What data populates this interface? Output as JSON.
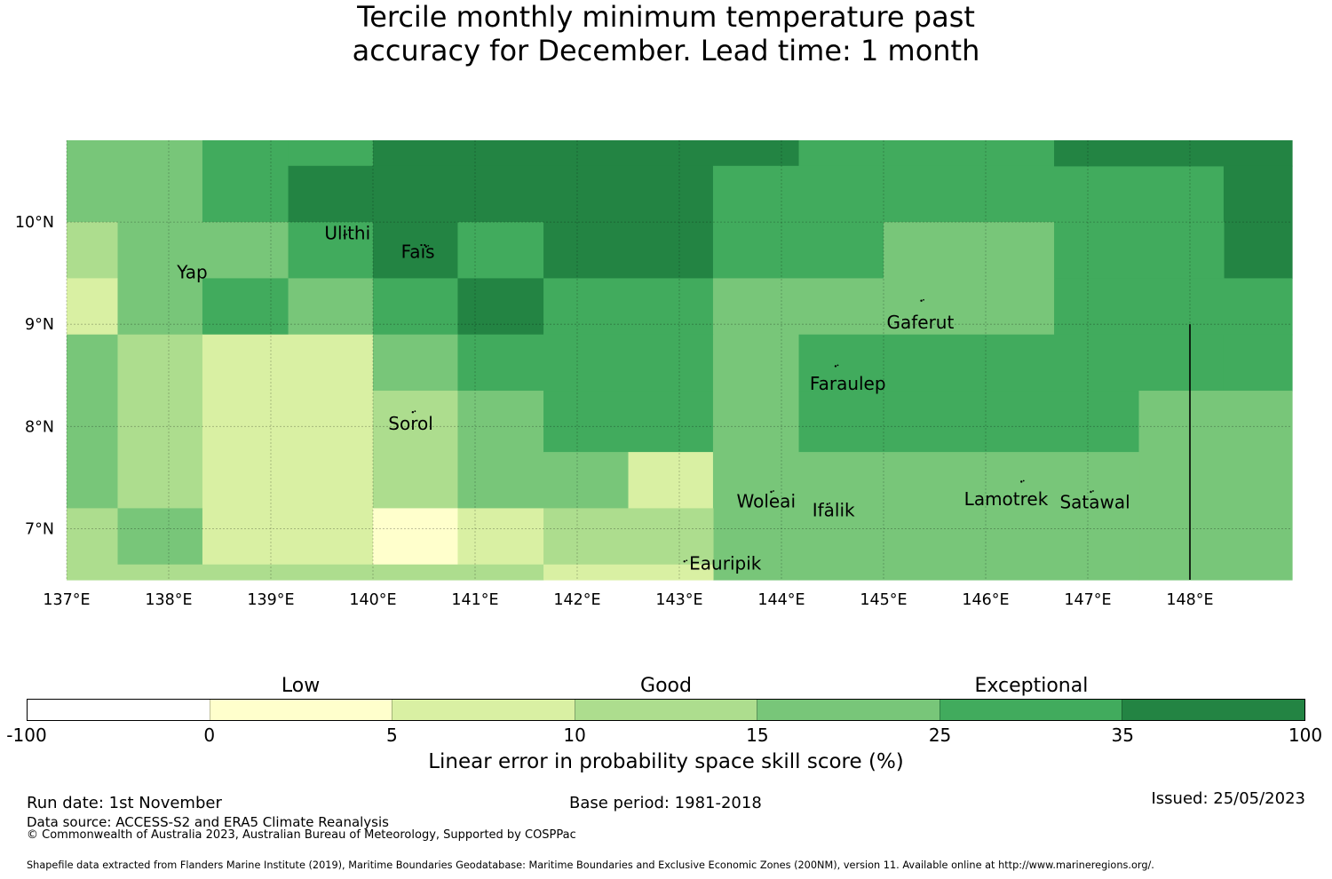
{
  "title": {
    "line1": "Tercile monthly minimum temperature past",
    "line2": "accuracy for December. Lead time: 1 month"
  },
  "colors": {
    "c0": "#ffffcc",
    "c1": "#d9f0a3",
    "c2": "#addd8e",
    "c3": "#78c679",
    "c4": "#41ab5d",
    "c5": "#238443"
  },
  "chart_data": {
    "type": "heatmap",
    "map": {
      "lon_range": [
        137.0,
        149.0
      ],
      "lat_range": [
        6.5,
        10.8
      ],
      "lon_ticks": [
        {
          "value": 137,
          "label": "137°E"
        },
        {
          "value": 138,
          "label": "138°E"
        },
        {
          "value": 139,
          "label": "139°E"
        },
        {
          "value": 140,
          "label": "140°E"
        },
        {
          "value": 141,
          "label": "141°E"
        },
        {
          "value": 142,
          "label": "142°E"
        },
        {
          "value": 143,
          "label": "143°E"
        },
        {
          "value": 144,
          "label": "144°E"
        },
        {
          "value": 145,
          "label": "145°E"
        },
        {
          "value": 146,
          "label": "146°E"
        },
        {
          "value": 147,
          "label": "147°E"
        },
        {
          "value": 148,
          "label": "148°E"
        }
      ],
      "lat_ticks": [
        {
          "value": 10,
          "label": "10°N"
        },
        {
          "value": 9,
          "label": "9°N"
        },
        {
          "value": 8,
          "label": "8°N"
        },
        {
          "value": 7,
          "label": "7°N"
        }
      ],
      "cells": [
        {
          "lon": [
            137.0,
            138.33
          ],
          "lat": [
            10.0,
            10.8
          ],
          "cls": 3
        },
        {
          "lon": [
            138.33,
            139.17
          ],
          "lat": [
            10.0,
            10.8
          ],
          "cls": 4
        },
        {
          "lon": [
            139.17,
            140.0
          ],
          "lat": [
            10.55,
            10.8
          ],
          "cls": 4
        },
        {
          "lon": [
            139.17,
            140.0
          ],
          "lat": [
            10.0,
            10.55
          ],
          "cls": 5
        },
        {
          "lon": [
            140.0,
            144.17
          ],
          "lat": [
            10.55,
            10.8
          ],
          "cls": 5
        },
        {
          "lon": [
            140.0,
            143.33
          ],
          "lat": [
            10.0,
            10.55
          ],
          "cls": 5
        },
        {
          "lon": [
            144.17,
            146.67
          ],
          "lat": [
            10.55,
            10.8
          ],
          "cls": 4
        },
        {
          "lon": [
            143.33,
            148.33
          ],
          "lat": [
            10.0,
            10.55
          ],
          "cls": 4
        },
        {
          "lon": [
            146.67,
            149.0
          ],
          "lat": [
            10.55,
            10.8
          ],
          "cls": 5
        },
        {
          "lon": [
            148.33,
            149.0
          ],
          "lat": [
            9.45,
            10.55
          ],
          "cls": 5
        },
        {
          "lon": [
            137.0,
            137.5
          ],
          "lat": [
            9.45,
            10.0
          ],
          "cls": 2
        },
        {
          "lon": [
            137.5,
            139.17
          ],
          "lat": [
            9.45,
            10.0
          ],
          "cls": 3
        },
        {
          "lon": [
            139.17,
            140.0
          ],
          "lat": [
            9.45,
            10.0
          ],
          "cls": 4
        },
        {
          "lon": [
            140.0,
            140.83
          ],
          "lat": [
            9.45,
            10.0
          ],
          "cls": 5
        },
        {
          "lon": [
            140.83,
            141.67
          ],
          "lat": [
            9.45,
            10.0
          ],
          "cls": 4
        },
        {
          "lon": [
            141.67,
            143.33
          ],
          "lat": [
            9.45,
            10.0
          ],
          "cls": 5
        },
        {
          "lon": [
            143.33,
            145.0
          ],
          "lat": [
            9.45,
            10.0
          ],
          "cls": 4
        },
        {
          "lon": [
            145.0,
            146.67
          ],
          "lat": [
            9.45,
            10.0
          ],
          "cls": 3
        },
        {
          "lon": [
            146.67,
            148.33
          ],
          "lat": [
            9.45,
            10.0
          ],
          "cls": 4
        },
        {
          "lon": [
            137.0,
            137.5
          ],
          "lat": [
            8.9,
            9.45
          ],
          "cls": 1
        },
        {
          "lon": [
            137.5,
            138.33
          ],
          "lat": [
            8.9,
            9.45
          ],
          "cls": 3
        },
        {
          "lon": [
            138.33,
            139.17
          ],
          "lat": [
            8.9,
            9.45
          ],
          "cls": 4
        },
        {
          "lon": [
            139.17,
            140.0
          ],
          "lat": [
            8.9,
            9.45
          ],
          "cls": 3
        },
        {
          "lon": [
            140.0,
            140.83
          ],
          "lat": [
            8.9,
            9.45
          ],
          "cls": 4
        },
        {
          "lon": [
            140.83,
            141.67
          ],
          "lat": [
            8.9,
            9.45
          ],
          "cls": 5
        },
        {
          "lon": [
            141.67,
            143.33
          ],
          "lat": [
            8.9,
            9.45
          ],
          "cls": 4
        },
        {
          "lon": [
            143.33,
            146.67
          ],
          "lat": [
            8.9,
            9.45
          ],
          "cls": 3
        },
        {
          "lon": [
            146.67,
            149.0
          ],
          "lat": [
            8.9,
            9.45
          ],
          "cls": 4
        },
        {
          "lon": [
            137.0,
            137.5
          ],
          "lat": [
            7.2,
            8.9
          ],
          "cls": 3
        },
        {
          "lon": [
            137.5,
            138.33
          ],
          "lat": [
            7.2,
            8.9
          ],
          "cls": 2
        },
        {
          "lon": [
            138.33,
            140.0
          ],
          "lat": [
            7.2,
            8.9
          ],
          "cls": 1
        },
        {
          "lon": [
            140.0,
            140.83
          ],
          "lat": [
            8.35,
            8.9
          ],
          "cls": 3
        },
        {
          "lon": [
            140.0,
            140.83
          ],
          "lat": [
            7.2,
            8.35
          ],
          "cls": 2
        },
        {
          "lon": [
            140.83,
            143.33
          ],
          "lat": [
            8.35,
            8.9
          ],
          "cls": 4
        },
        {
          "lon": [
            140.83,
            141.67
          ],
          "lat": [
            7.2,
            8.35
          ],
          "cls": 3
        },
        {
          "lon": [
            141.67,
            143.33
          ],
          "lat": [
            7.75,
            8.35
          ],
          "cls": 4
        },
        {
          "lon": [
            141.67,
            142.5
          ],
          "lat": [
            7.2,
            7.75
          ],
          "cls": 3
        },
        {
          "lon": [
            142.5,
            143.33
          ],
          "lat": [
            7.2,
            7.75
          ],
          "cls": 1
        },
        {
          "lon": [
            143.33,
            144.17
          ],
          "lat": [
            6.5,
            8.9
          ],
          "cls": 3
        },
        {
          "lon": [
            144.17,
            148.33
          ],
          "lat": [
            8.35,
            8.9
          ],
          "cls": 4
        },
        {
          "lon": [
            148.33,
            149.0
          ],
          "lat": [
            8.35,
            8.9
          ],
          "cls": 4
        },
        {
          "lon": [
            144.17,
            147.5
          ],
          "lat": [
            7.75,
            8.35
          ],
          "cls": 4
        },
        {
          "lon": [
            147.5,
            149.0
          ],
          "lat": [
            6.5,
            8.35
          ],
          "cls": 3
        },
        {
          "lon": [
            144.17,
            147.5
          ],
          "lat": [
            6.5,
            7.75
          ],
          "cls": 3
        },
        {
          "lon": [
            137.0,
            137.5
          ],
          "lat": [
            6.65,
            7.2
          ],
          "cls": 2
        },
        {
          "lon": [
            137.5,
            138.33
          ],
          "lat": [
            6.65,
            7.2
          ],
          "cls": 3
        },
        {
          "lon": [
            138.33,
            140.0
          ],
          "lat": [
            6.65,
            7.2
          ],
          "cls": 1
        },
        {
          "lon": [
            140.0,
            140.83
          ],
          "lat": [
            6.65,
            7.2
          ],
          "cls": 0
        },
        {
          "lon": [
            140.83,
            141.67
          ],
          "lat": [
            6.65,
            7.2
          ],
          "cls": 1
        },
        {
          "lon": [
            141.67,
            143.33
          ],
          "lat": [
            6.65,
            7.2
          ],
          "cls": 2
        },
        {
          "lon": [
            137.0,
            141.67
          ],
          "lat": [
            6.5,
            6.65
          ],
          "cls": 2
        },
        {
          "lon": [
            141.67,
            143.33
          ],
          "lat": [
            6.5,
            6.65
          ],
          "cls": 1
        }
      ],
      "islands": [
        {
          "name": "Ulithi",
          "lon": 139.72,
          "lat": 9.87
        },
        {
          "name": "Fais",
          "lon": 140.52,
          "lat": 9.76
        },
        {
          "name": "Yap",
          "lon": 138.13,
          "lat": 9.52
        },
        {
          "name": "Gaferut",
          "lon": 145.37,
          "lat": 9.23
        },
        {
          "name": "Faraulep",
          "lon": 144.53,
          "lat": 8.59
        },
        {
          "name": "Sorol",
          "lon": 140.39,
          "lat": 8.14
        },
        {
          "name": "Woleai",
          "lon": 143.9,
          "lat": 7.36
        },
        {
          "name": "Ifalik",
          "lon": 144.45,
          "lat": 7.24
        },
        {
          "name": "Lamotrek",
          "lon": 146.35,
          "lat": 7.46
        },
        {
          "name": "Satawal",
          "lon": 147.03,
          "lat": 7.36
        },
        {
          "name": "Eauripik",
          "lon": 143.05,
          "lat": 6.68
        }
      ],
      "place_labels": [
        {
          "text": "Ulithi",
          "lon": 139.75,
          "lat": 9.83
        },
        {
          "text": "Faïs",
          "lon": 140.44,
          "lat": 9.65
        },
        {
          "text": "Yap",
          "lon": 138.23,
          "lat": 9.45
        },
        {
          "text": "Gaferut",
          "lon": 145.36,
          "lat": 8.96
        },
        {
          "text": "Faraulep",
          "lon": 144.65,
          "lat": 8.36
        },
        {
          "text": "Sorol",
          "lon": 140.37,
          "lat": 7.97
        },
        {
          "text": "Woleai",
          "lon": 143.85,
          "lat": 7.21
        },
        {
          "text": "Ifalik",
          "lon": 144.51,
          "lat": 7.12
        },
        {
          "text": "Lamotrek",
          "lon": 146.2,
          "lat": 7.23
        },
        {
          "text": "Satawal",
          "lon": 147.07,
          "lat": 7.2
        },
        {
          "text": "Eauripik",
          "lon": 143.45,
          "lat": 6.6
        }
      ],
      "boundary_line": {
        "lon": 148.0,
        "lat": [
          6.5,
          9.0
        ]
      }
    },
    "colorbar": {
      "segments": [
        "#ffffff",
        "#ffffcc",
        "#d9f0a3",
        "#addd8e",
        "#78c679",
        "#41ab5d",
        "#238443"
      ],
      "ticks": [
        "-100",
        "0",
        "5",
        "10",
        "15",
        "25",
        "35",
        "100"
      ],
      "categories": [
        "Low",
        "Good",
        "Exceptional"
      ],
      "label": "Linear error in probability space skill score (%)"
    }
  },
  "footer": {
    "run_date": "Run date: 1st November",
    "base_period": "Base period: 1981-2018",
    "issued": "Issued: 25/05/2023",
    "data_source": "Data source: ACCESS-S2 and ERA5 Climate Reanalysis",
    "copyright": "© Commonwealth of Australia 2023, Australian Bureau of Meteorology, Supported by COSPPac",
    "shapefile": "Shapefile data extracted from Flanders Marine Institute (2019), Maritime Boundaries Geodatabase: Maritime Boundaries and Exclusive Economic Zones (200NM), version 11. Available online at http://www.marineregions.org/."
  }
}
